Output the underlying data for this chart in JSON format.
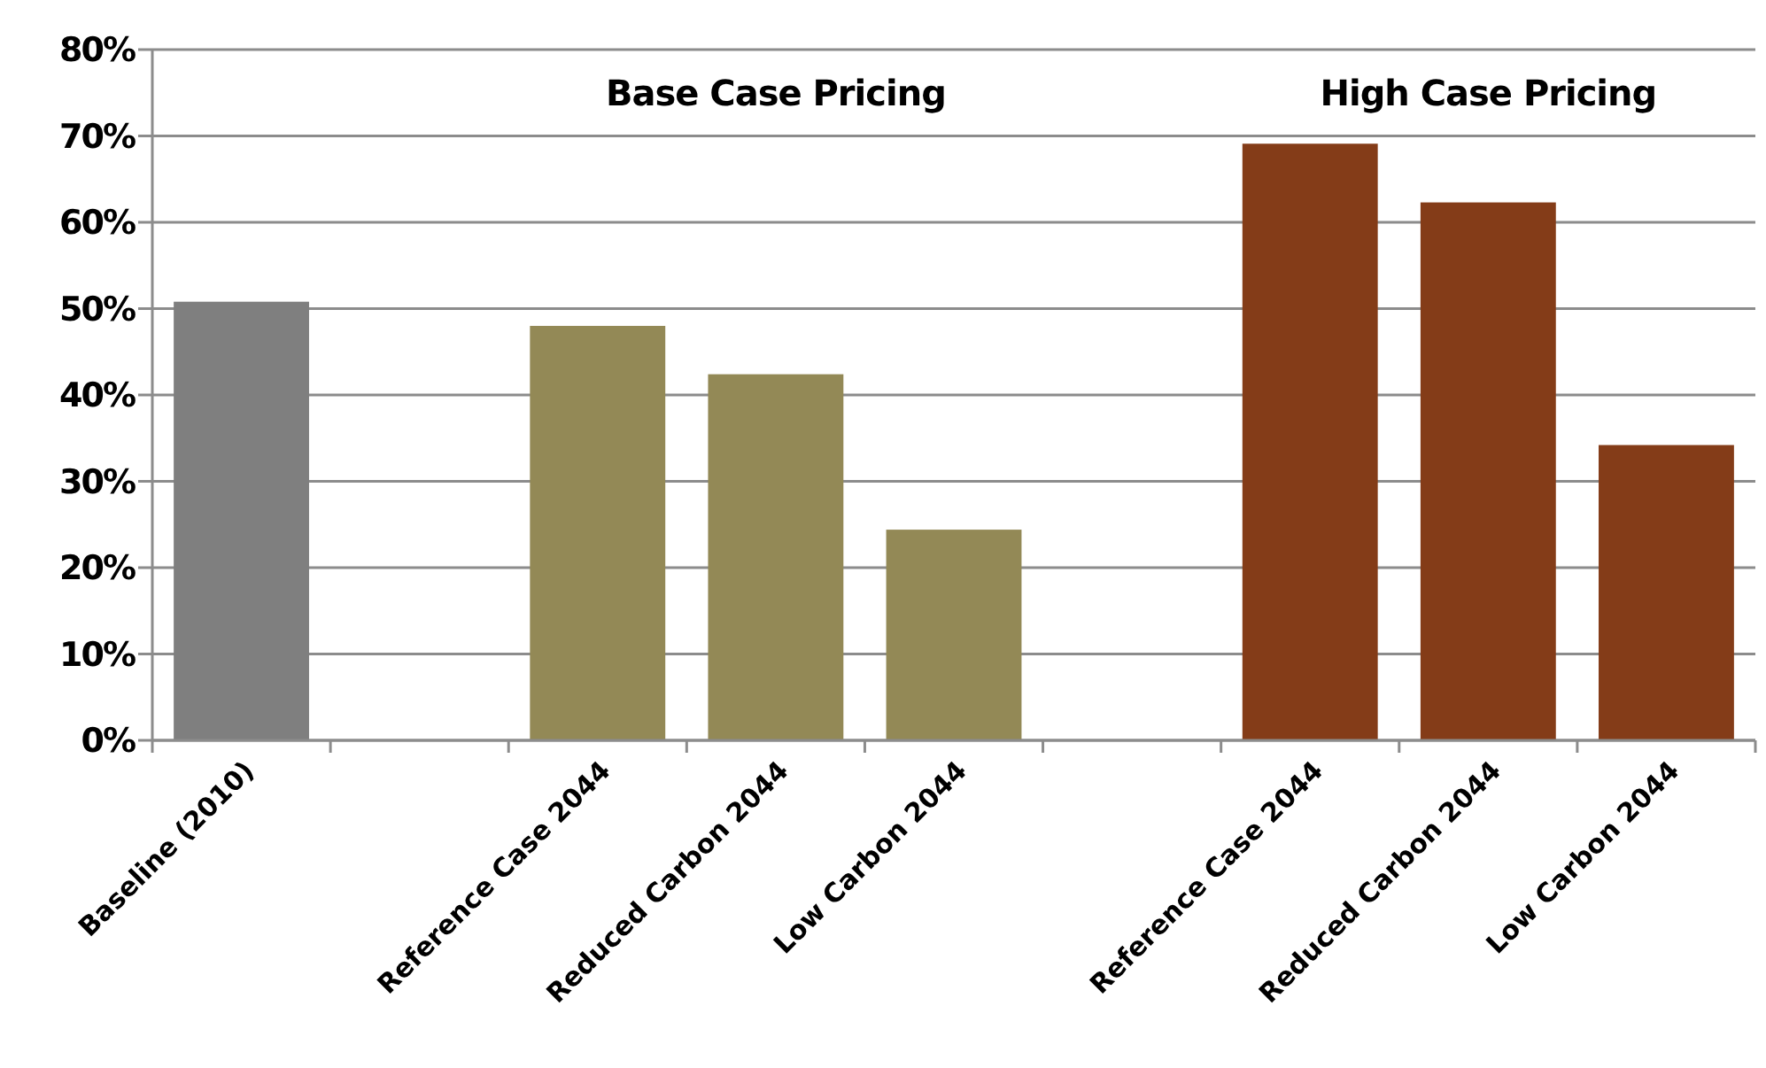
{
  "chart_data": {
    "type": "bar",
    "categories": [
      "Baseline (2010)",
      null,
      "Reference Case 2044",
      "Reduced Carbon 2044",
      "Low Carbon 2044",
      null,
      "Reference Case 2044",
      "Reduced Carbon 2044",
      "Low Carbon 2044"
    ],
    "values": [
      50.8,
      null,
      48.0,
      42.4,
      24.4,
      null,
      69.1,
      62.3,
      34.2
    ],
    "colors": [
      "#7f7f7f",
      null,
      "#938956",
      "#938956",
      "#938956",
      null,
      "#843c18",
      "#843c18",
      "#843c18"
    ],
    "ylim": [
      0,
      80
    ],
    "yticks": [
      {
        "value": 0,
        "label": "0%"
      },
      {
        "value": 10,
        "label": "10%"
      },
      {
        "value": 20,
        "label": "20%"
      },
      {
        "value": 30,
        "label": "30%"
      },
      {
        "value": 40,
        "label": "40%"
      },
      {
        "value": 50,
        "label": "50%"
      },
      {
        "value": 60,
        "label": "60%"
      },
      {
        "value": 70,
        "label": "70%"
      },
      {
        "value": 80,
        "label": "80%"
      }
    ],
    "grid": "y",
    "annotations": [
      "Base Case Pricing",
      "High Case Pricing"
    ]
  }
}
